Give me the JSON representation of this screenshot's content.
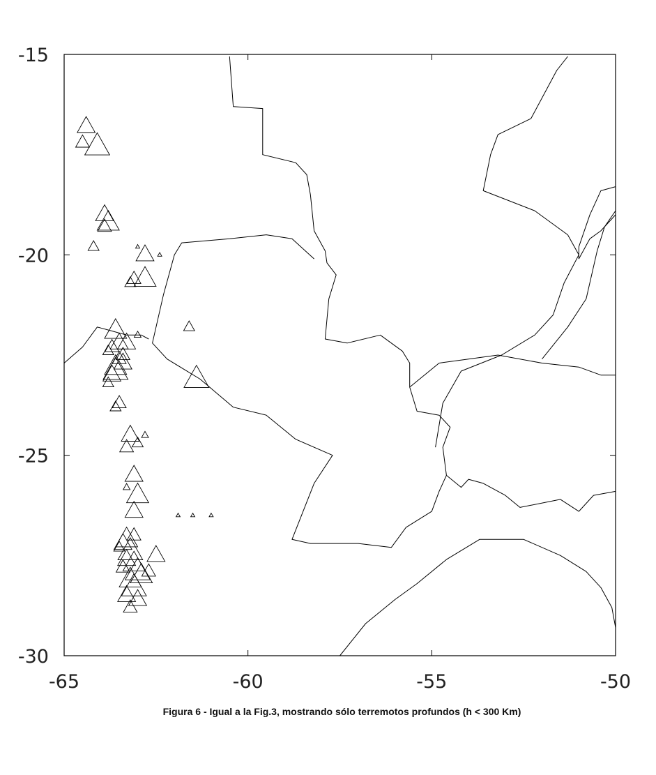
{
  "caption": "Figura 6 - Igual a la Fig.3, mostrando sólo terremotos profundos (h < 300 Km)",
  "map": {
    "lon_range": [
      -65,
      -50
    ],
    "lat_range": [
      -30,
      -15
    ],
    "x_ticks": [
      {
        "value": -65,
        "label": "-65"
      },
      {
        "value": -60,
        "label": "-60"
      },
      {
        "value": -55,
        "label": "-55"
      },
      {
        "value": -50,
        "label": "-50"
      }
    ],
    "y_ticks": [
      {
        "value": -15,
        "label": "-15"
      },
      {
        "value": -20,
        "label": "-20"
      },
      {
        "value": -25,
        "label": "-25"
      },
      {
        "value": -30,
        "label": "-30"
      }
    ],
    "line_color": "#000000",
    "marker": "triangle",
    "borders": [
      [
        [
          -60.5,
          -15.05
        ],
        [
          -60.4,
          -16.3
        ],
        [
          -59.6,
          -16.35
        ],
        [
          -59.6,
          -17.5
        ],
        [
          -58.7,
          -17.7
        ],
        [
          -58.4,
          -18.0
        ],
        [
          -58.3,
          -18.5
        ],
        [
          -58.2,
          -19.4
        ],
        [
          -57.9,
          -19.9
        ],
        [
          -57.85,
          -20.2
        ],
        [
          -57.6,
          -20.5
        ],
        [
          -57.8,
          -21.1
        ],
        [
          -57.9,
          -22.1
        ],
        [
          -57.3,
          -22.2
        ],
        [
          -56.4,
          -22.0
        ],
        [
          -55.8,
          -22.4
        ],
        [
          -55.6,
          -22.7
        ],
        [
          -55.6,
          -23.3
        ],
        [
          -55.4,
          -23.9
        ],
        [
          -54.8,
          -24.0
        ],
        [
          -54.5,
          -24.3
        ],
        [
          -54.7,
          -24.8
        ],
        [
          -54.6,
          -25.5
        ]
      ],
      [
        [
          -54.6,
          -25.5
        ],
        [
          -54.8,
          -25.9
        ],
        [
          -55.0,
          -26.4
        ],
        [
          -55.7,
          -26.8
        ],
        [
          -56.1,
          -27.3
        ],
        [
          -57.0,
          -27.2
        ],
        [
          -58.3,
          -27.2
        ],
        [
          -58.8,
          -27.1
        ],
        [
          -58.2,
          -25.7
        ],
        [
          -57.7,
          -25.0
        ],
        [
          -58.7,
          -24.6
        ],
        [
          -59.5,
          -24.0
        ],
        [
          -60.4,
          -23.8
        ],
        [
          -61.3,
          -23.1
        ],
        [
          -62.2,
          -22.6
        ],
        [
          -62.6,
          -22.2
        ],
        [
          -62.3,
          -21.0
        ],
        [
          -62.0,
          -20.0
        ],
        [
          -61.8,
          -19.7
        ],
        [
          -60.5,
          -19.6
        ],
        [
          -59.5,
          -19.5
        ],
        [
          -58.8,
          -19.6
        ],
        [
          -58.2,
          -20.1
        ]
      ],
      [
        [
          -65.0,
          -22.7
        ],
        [
          -64.5,
          -22.3
        ],
        [
          -64.1,
          -21.8
        ],
        [
          -63.7,
          -21.9
        ],
        [
          -63.3,
          -22.0
        ],
        [
          -62.9,
          -22.0
        ],
        [
          -62.7,
          -22.1
        ]
      ],
      [
        [
          -54.6,
          -25.5
        ],
        [
          -54.2,
          -25.8
        ],
        [
          -54.0,
          -25.6
        ],
        [
          -53.6,
          -25.7
        ],
        [
          -53.0,
          -26.0
        ],
        [
          -52.6,
          -26.3
        ],
        [
          -51.5,
          -26.1
        ],
        [
          -51.0,
          -26.4
        ],
        [
          -50.6,
          -26.0
        ],
        [
          -50.0,
          -25.9
        ]
      ],
      [
        [
          -57.5,
          -30.0
        ],
        [
          -56.8,
          -29.2
        ],
        [
          -56.0,
          -28.6
        ],
        [
          -55.4,
          -28.2
        ],
        [
          -54.6,
          -27.6
        ],
        [
          -53.7,
          -27.1
        ],
        [
          -52.5,
          -27.1
        ],
        [
          -51.5,
          -27.5
        ],
        [
          -50.8,
          -27.9
        ],
        [
          -50.4,
          -28.3
        ],
        [
          -50.1,
          -28.8
        ],
        [
          -50.0,
          -29.3
        ]
      ],
      [
        [
          -55.6,
          -23.3
        ],
        [
          -54.8,
          -22.7
        ],
        [
          -54.0,
          -22.6
        ],
        [
          -53.2,
          -22.5
        ],
        [
          -52.0,
          -22.7
        ],
        [
          -51.0,
          -22.8
        ],
        [
          -50.4,
          -23.0
        ],
        [
          -50.0,
          -23.0
        ]
      ],
      [
        [
          -51.3,
          -15.05
        ],
        [
          -51.6,
          -15.4
        ],
        [
          -52.3,
          -16.6
        ],
        [
          -53.2,
          -17.0
        ],
        [
          -53.4,
          -17.5
        ],
        [
          -53.6,
          -18.4
        ],
        [
          -52.2,
          -18.9
        ],
        [
          -51.3,
          -19.5
        ],
        [
          -51.0,
          -20.0
        ],
        [
          -51.4,
          -20.7
        ],
        [
          -51.7,
          -21.5
        ],
        [
          -52.2,
          -22.0
        ],
        [
          -53.1,
          -22.5
        ],
        [
          -54.2,
          -22.9
        ],
        [
          -54.7,
          -23.7
        ],
        [
          -54.9,
          -24.8
        ]
      ],
      [
        [
          -51.0,
          -20.1
        ],
        [
          -50.7,
          -19.6
        ],
        [
          -50.4,
          -19.4
        ],
        [
          -50.0,
          -19.0
        ]
      ],
      [
        [
          -50.0,
          -18.9
        ],
        [
          -50.3,
          -19.3
        ],
        [
          -50.5,
          -19.9
        ],
        [
          -50.8,
          -21.1
        ],
        [
          -51.3,
          -21.8
        ],
        [
          -52.0,
          -22.6
        ]
      ],
      [
        [
          -51.0,
          -20.1
        ],
        [
          -51.0,
          -19.8
        ],
        [
          -50.7,
          -19.0
        ],
        [
          -50.4,
          -18.4
        ],
        [
          -50.0,
          -18.3
        ]
      ]
    ],
    "quakes": [
      [
        -64.4,
        -16.8,
        1.3
      ],
      [
        -64.5,
        -17.2,
        1.0
      ],
      [
        -64.1,
        -17.3,
        1.8
      ],
      [
        -63.9,
        -19.0,
        1.3
      ],
      [
        -63.8,
        -19.2,
        1.6
      ],
      [
        -63.9,
        -19.3,
        1.0
      ],
      [
        -64.2,
        -19.8,
        0.8
      ],
      [
        -63.0,
        -19.8,
        0.3
      ],
      [
        -62.8,
        -20.0,
        1.3
      ],
      [
        -62.4,
        -20.0,
        0.3
      ],
      [
        -63.2,
        -20.7,
        0.8
      ],
      [
        -63.1,
        -20.6,
        1.0
      ],
      [
        -62.8,
        -20.6,
        1.6
      ],
      [
        -63.6,
        -21.9,
        1.6
      ],
      [
        -63.5,
        -22.2,
        1.3
      ],
      [
        -63.7,
        -22.3,
        1.0
      ],
      [
        -63.4,
        -22.5,
        1.0
      ],
      [
        -63.8,
        -22.4,
        0.8
      ],
      [
        -63.3,
        -22.2,
        1.3
      ],
      [
        -63.0,
        -22.0,
        0.5
      ],
      [
        -61.6,
        -21.8,
        0.8
      ],
      [
        -63.6,
        -22.8,
        1.6
      ],
      [
        -63.7,
        -23.0,
        1.3
      ],
      [
        -63.6,
        -22.9,
        1.8
      ],
      [
        -63.8,
        -23.2,
        0.8
      ],
      [
        -63.4,
        -22.7,
        1.3
      ],
      [
        -63.5,
        -22.6,
        1.0
      ],
      [
        -61.4,
        -23.1,
        1.8
      ],
      [
        -63.5,
        -23.7,
        1.0
      ],
      [
        -63.6,
        -23.8,
        0.8
      ],
      [
        -63.2,
        -24.5,
        1.3
      ],
      [
        -63.3,
        -24.8,
        1.0
      ],
      [
        -63.0,
        -24.7,
        0.8
      ],
      [
        -62.8,
        -24.5,
        0.5
      ],
      [
        -63.1,
        -25.5,
        1.3
      ],
      [
        -63.3,
        -25.8,
        0.5
      ],
      [
        -63.0,
        -26.0,
        1.6
      ],
      [
        -63.1,
        -26.4,
        1.3
      ],
      [
        -61.9,
        -26.5,
        0.3
      ],
      [
        -61.5,
        -26.5,
        0.3
      ],
      [
        -61.0,
        -26.5,
        0.3
      ],
      [
        -63.3,
        -27.1,
        1.6
      ],
      [
        -63.4,
        -27.2,
        1.3
      ],
      [
        -63.2,
        -27.4,
        1.8
      ],
      [
        -63.3,
        -27.6,
        1.3
      ],
      [
        -63.1,
        -27.7,
        1.6
      ],
      [
        -62.5,
        -27.5,
        1.3
      ],
      [
        -63.0,
        -27.9,
        1.8
      ],
      [
        -63.4,
        -27.8,
        1.0
      ],
      [
        -63.2,
        -28.1,
        1.6
      ],
      [
        -63.1,
        -28.3,
        1.8
      ],
      [
        -63.3,
        -28.5,
        1.3
      ],
      [
        -63.0,
        -28.6,
        1.3
      ],
      [
        -63.2,
        -28.8,
        1.0
      ],
      [
        -62.9,
        -28.0,
        1.6
      ],
      [
        -62.7,
        -27.9,
        1.0
      ],
      [
        -63.5,
        -27.3,
        0.8
      ],
      [
        -63.1,
        -27.0,
        1.0
      ]
    ]
  }
}
